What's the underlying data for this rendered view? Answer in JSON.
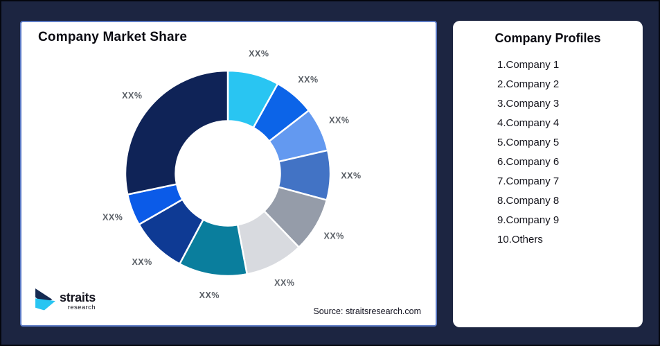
{
  "frame": {
    "background": "#1C2541",
    "border_color": "#04070E"
  },
  "chart_panel": {
    "title": "Company Market Share",
    "border_color": "#5B79C4",
    "source": "Source: straitsresearch.com",
    "logo": {
      "brand": "straits",
      "sub": "research",
      "mark_navy": "#152A52",
      "mark_cyan": "#29C5F2"
    }
  },
  "chart_data": {
    "type": "pie",
    "subtype": "donut",
    "title": "Company Market Share",
    "legend_position": "none",
    "grid": false,
    "start_angle_deg": 0,
    "direction": "clockwise",
    "inner_radius_ratio": 0.51,
    "label_color": "#5A5F66",
    "segments": [
      {
        "label": "XX%",
        "pct_est": 8.1,
        "color": "#29C5F2"
      },
      {
        "label": "XX%",
        "pct_est": 6.4,
        "color": "#0C64E8"
      },
      {
        "label": "XX%",
        "pct_est": 6.9,
        "color": "#6399F0"
      },
      {
        "label": "XX%",
        "pct_est": 7.8,
        "color": "#4273C5"
      },
      {
        "label": "XX%",
        "pct_est": 8.6,
        "color": "#959CA9"
      },
      {
        "label": "XX%",
        "pct_est": 9.2,
        "color": "#D8DADF"
      },
      {
        "label": "XX%",
        "pct_est": 10.8,
        "color": "#0A7E9D"
      },
      {
        "label": "XX%",
        "pct_est": 8.9,
        "color": "#0E3A94"
      },
      {
        "label": "XX%",
        "pct_est": 5.0,
        "color": "#0B5BE8"
      },
      {
        "label": "XX%",
        "pct_est": 28.3,
        "color": "#0F2357"
      }
    ]
  },
  "profiles_panel": {
    "title": "Company Profiles",
    "items": [
      "1.Company 1",
      "2.Company 2",
      "3.Company 3",
      "4.Company 4",
      "5.Company 5",
      "6.Company 6",
      "7.Company 7",
      "8.Company 8",
      "9.Company 9",
      "10.Others"
    ]
  }
}
